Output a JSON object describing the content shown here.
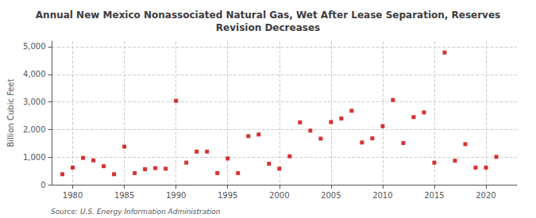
{
  "chart_data": {
    "type": "scatter",
    "title": "Annual New Mexico Nonassociated Natural Gas, Wet After Lease Separation, Reserves\nRevision Decreases",
    "ylabel": "Billion Cubic Feet",
    "annotation": "Source: U.S. Energy Information Administration",
    "x": [
      1979,
      1980,
      1981,
      1982,
      1983,
      1984,
      1985,
      1986,
      1987,
      1988,
      1989,
      1990,
      1991,
      1992,
      1993,
      1994,
      1995,
      1996,
      1997,
      1998,
      1999,
      2000,
      2001,
      2002,
      2003,
      2004,
      2005,
      2006,
      2007,
      2008,
      2009,
      2010,
      2011,
      2012,
      2013,
      2014,
      2015,
      2016,
      2017,
      2018,
      2019,
      2020,
      2021
    ],
    "values": [
      380,
      620,
      970,
      880,
      670,
      380,
      1380,
      420,
      560,
      600,
      580,
      3040,
      800,
      1200,
      1200,
      420,
      950,
      420,
      1760,
      1820,
      760,
      580,
      1030,
      2260,
      1960,
      1670,
      2270,
      2400,
      2680,
      1530,
      1680,
      2120,
      3070,
      1510,
      2450,
      2620,
      800,
      4790,
      870,
      1470,
      620,
      620,
      1010
    ],
    "color": "#cc0000",
    "marker": "square",
    "xlim": [
      1978,
      2023
    ],
    "xticks": [
      1980,
      1985,
      1990,
      1995,
      2000,
      2005,
      2010,
      2015,
      2020
    ],
    "ylim": [
      0,
      5200
    ],
    "yticks": [
      0,
      {
        "value": 1000,
        "label": "1,000"
      },
      {
        "value": 2000,
        "label": "2,000"
      },
      {
        "value": 3000,
        "label": "3,000"
      },
      {
        "value": 4000,
        "label": "4,000"
      },
      {
        "value": 5000,
        "label": "5,000"
      }
    ],
    "grid": true
  }
}
